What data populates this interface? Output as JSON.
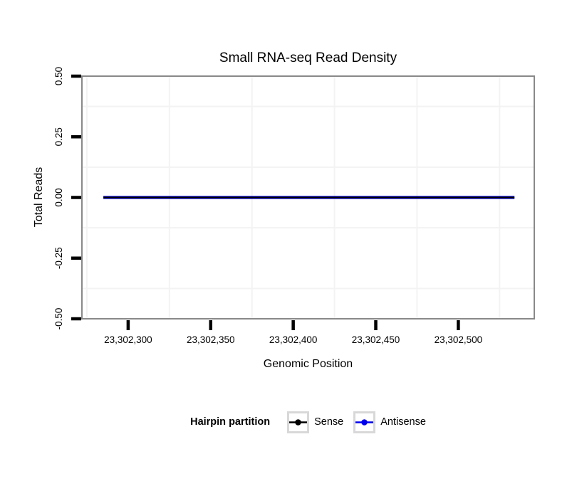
{
  "chart_data": {
    "type": "line",
    "title": "Small RNA-seq Read Density",
    "xlabel": "Genomic Position",
    "ylabel": "Total Reads",
    "xlim": [
      23302272,
      23302546
    ],
    "ylim": [
      -0.5,
      0.5
    ],
    "x_ticks": [
      23302300,
      23302350,
      23302400,
      23302450,
      23302500
    ],
    "x_tick_labels": [
      "23,302,300",
      "23,302,350",
      "23,302,400",
      "23,302,450",
      "23,302,500"
    ],
    "x_minor_gridlines": [
      23302275,
      23302325,
      23302375,
      23302425,
      23302475,
      23302525
    ],
    "y_ticks": [
      0.5,
      0.25,
      0,
      -0.25,
      -0.5
    ],
    "y_tick_labels": [
      "0.50",
      "0.25",
      "0.00",
      "-0.25",
      "-0.50"
    ],
    "y_minor_gridlines": [
      0.375,
      0.125,
      -0.125,
      -0.375
    ],
    "grid": "minor-gridlines-only, very light gray, on white panel",
    "legend_title": "Hairpin partition",
    "legend_position": "bottom-center",
    "series": [
      {
        "name": "Sense",
        "color": "#000000",
        "linewidth": 2.3,
        "x": [
          23302285,
          23302534
        ],
        "y": [
          0,
          0
        ]
      },
      {
        "name": "Antisense",
        "color": "#0000ee",
        "linewidth": 4.2,
        "x": [
          23302285,
          23302534
        ],
        "y": [
          0,
          0
        ]
      }
    ],
    "colors": {
      "panel_border": "#898989",
      "gridline": "#f3f3f3",
      "tick": "#000000",
      "text": "#000000",
      "legend_key_border": "#d8d8d8",
      "background": "#ffffff"
    }
  }
}
